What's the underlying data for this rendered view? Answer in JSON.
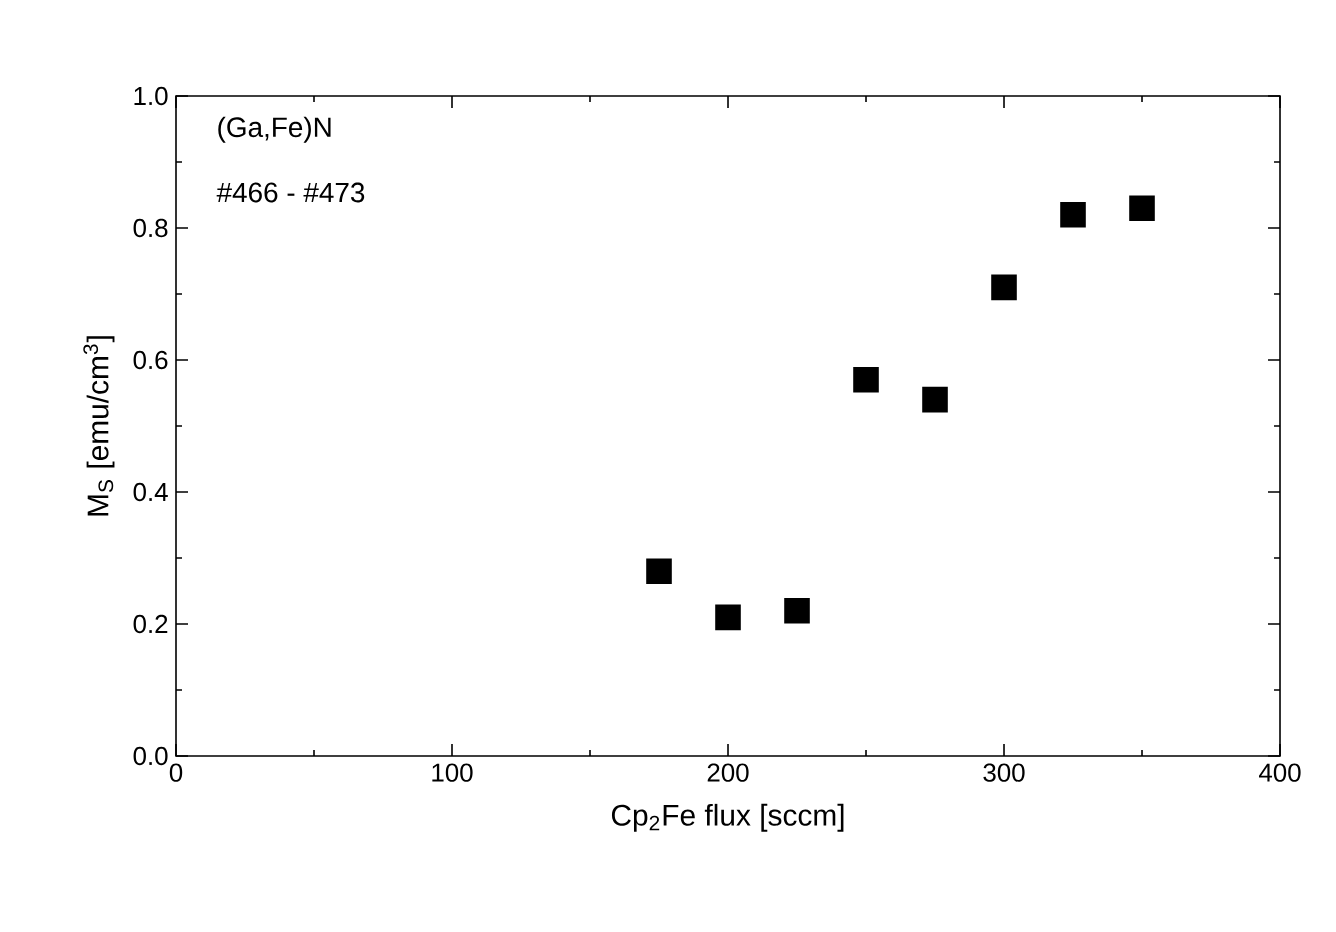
{
  "chart_data": {
    "type": "scatter",
    "xlabel": "Cp$_{2}$Fe flux   [sccm]",
    "ylabel": "M$_{S}$ [emu/cm$^{3}$]",
    "annotations": [
      "(Ga,Fe)N",
      "#466 - #473"
    ],
    "x": [
      175,
      200,
      225,
      250,
      275,
      300,
      325,
      350
    ],
    "series": [
      {
        "color": "#000000",
        "values": [
          0.28,
          0.21,
          0.22,
          0.57,
          0.54,
          0.71,
          0.82,
          0.83
        ]
      }
    ],
    "marker": "square",
    "grid": false,
    "legend": false,
    "xlim": [
      0,
      400
    ],
    "xticks": [
      0,
      100,
      200,
      300,
      400
    ],
    "ylim": [
      0,
      1.0
    ],
    "yticks": [
      {
        "value": 0,
        "label": "0.0"
      },
      0.2,
      0.4,
      0.6,
      0.8,
      {
        "value": 1.0,
        "label": "1.0"
      }
    ]
  }
}
